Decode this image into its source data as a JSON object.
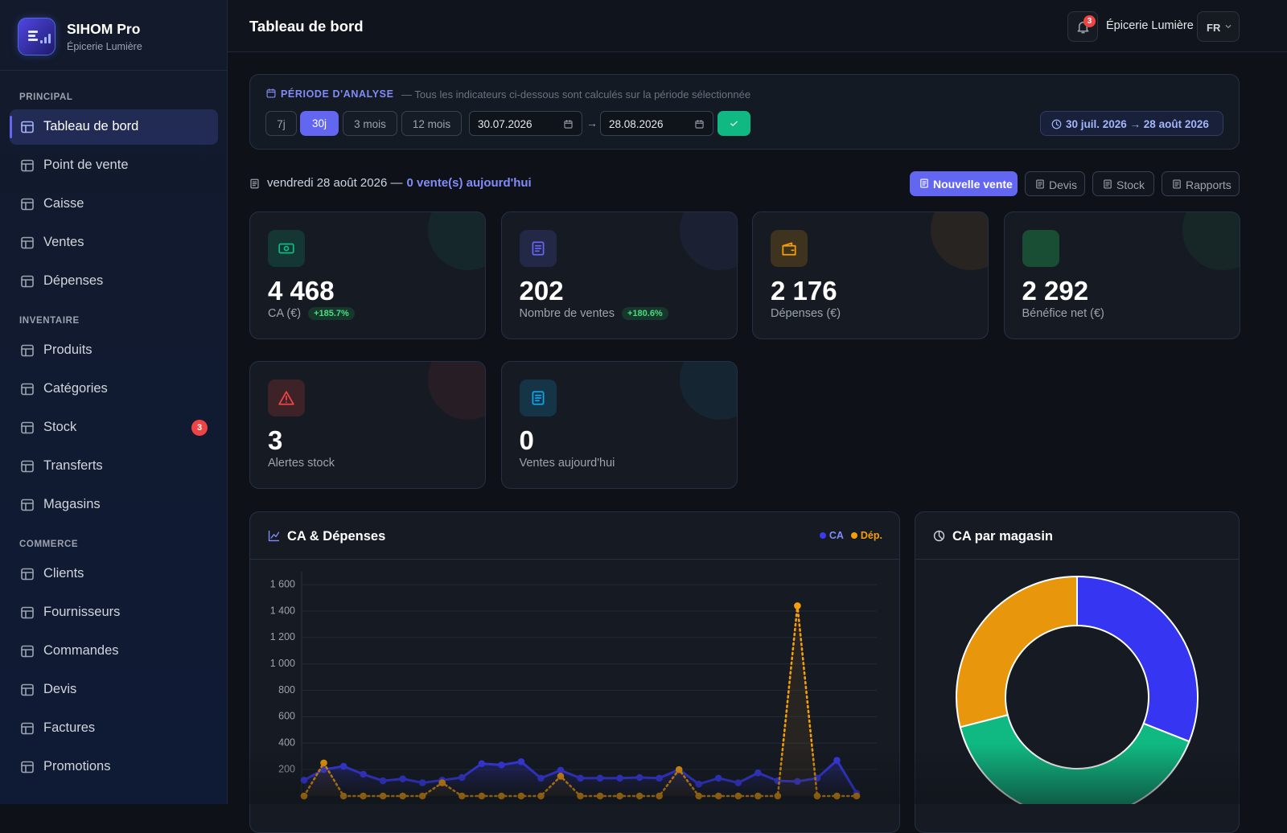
{
  "sidebar": {
    "brand": "SIHOM Pro",
    "store": "Épicerie Lumière",
    "sections": [
      {
        "title": "PRINCIPAL",
        "items": [
          {
            "label": "Tableau de bord"
          },
          {
            "label": "Point de vente"
          },
          {
            "label": "Caisse"
          },
          {
            "label": "Ventes"
          },
          {
            "label": "Dépenses"
          }
        ]
      },
      {
        "title": "INVENTAIRE",
        "items": [
          {
            "label": "Produits"
          },
          {
            "label": "Catégories"
          },
          {
            "label": "Stock",
            "badge": "3"
          },
          {
            "label": "Transferts"
          },
          {
            "label": "Magasins"
          }
        ]
      },
      {
        "title": "COMMERCE",
        "items": [
          {
            "label": "Clients"
          },
          {
            "label": "Fournisseurs"
          },
          {
            "label": "Commandes"
          },
          {
            "label": "Devis"
          },
          {
            "label": "Factures"
          },
          {
            "label": "Promotions"
          }
        ]
      }
    ]
  },
  "header": {
    "title": "Tableau de bord",
    "notifications": "3",
    "store": "Épicerie Lumière",
    "lang": "FR"
  },
  "period": {
    "title": "PÉRIODE D'ANALYSE",
    "note": "— Tous les indicateurs ci-dessous sont calculés sur la période sélectionnée",
    "presets": [
      "7j",
      "30j",
      "3 mois",
      "12 mois"
    ],
    "start": "30.07.2026",
    "separator": "→",
    "end": "28.08.2026",
    "range": "30 juil. 2026 → 28 août 2026"
  },
  "today": {
    "date": "vendredi 28 août 2026 —",
    "sales": "0 vente(s) aujourd'hui"
  },
  "actions": [
    "Nouvelle vente",
    "Devis",
    "Stock",
    "Rapports"
  ],
  "kpis": [
    {
      "value": "4 468",
      "label": "CA (€)",
      "delta": "+185.7%",
      "color": "#10b981"
    },
    {
      "value": "202",
      "label": "Nombre de ventes",
      "delta": "+180.6%",
      "color": "#6366f1"
    },
    {
      "value": "2 176",
      "label": "Dépenses (€)",
      "color": "#f59e0b"
    },
    {
      "value": "2 292",
      "label": "Bénéfice net (€)",
      "color": "#22c55e"
    },
    {
      "value": "3",
      "label": "Alertes stock",
      "color": "#ef4444"
    },
    {
      "value": "0",
      "label": "Ventes aujourd'hui",
      "color": "#0ea5e9"
    }
  ],
  "chart_data": [
    {
      "type": "line",
      "title": "CA & Dépenses",
      "ylim": [
        0,
        1700
      ],
      "yticks": [
        200,
        400,
        600,
        800,
        {
          "value": 1000,
          "label": "1 000"
        },
        {
          "value": 1200,
          "label": "1 200"
        },
        {
          "value": 1400,
          "label": "1 400"
        },
        {
          "value": 1600,
          "label": "1 600"
        }
      ],
      "grid": true,
      "series": [
        {
          "name": "CA",
          "color": "#3b3bf0",
          "values": [
            120,
            200,
            225,
            165,
            115,
            130,
            100,
            120,
            140,
            245,
            235,
            260,
            135,
            195,
            135,
            135,
            135,
            140,
            135,
            200,
            90,
            135,
            100,
            175,
            115,
            110,
            135,
            270,
            20
          ]
        },
        {
          "name": "Dép.",
          "color": "#f59e0b",
          "values": [
            0,
            250,
            0,
            0,
            0,
            0,
            0,
            100,
            0,
            0,
            0,
            0,
            0,
            150,
            0,
            0,
            0,
            0,
            0,
            200,
            0,
            0,
            0,
            0,
            0,
            1440,
            0,
            0,
            0
          ]
        }
      ]
    },
    {
      "type": "pie",
      "title": "CA par magasin",
      "values": [
        31,
        40,
        29
      ],
      "colors": [
        "#3535f2",
        "#10b981",
        "#e8960c"
      ],
      "donut": true
    }
  ]
}
